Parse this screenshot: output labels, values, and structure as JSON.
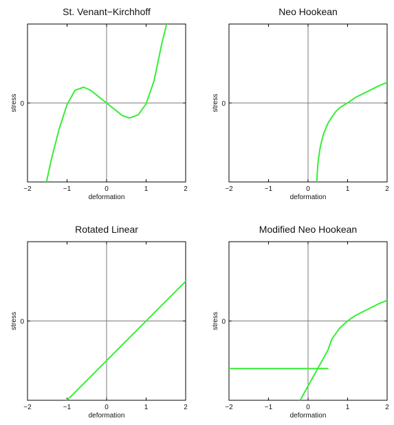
{
  "chart_data": [
    {
      "type": "line",
      "title": "St. Venant−Kirchhoff",
      "xlabel": "deformation",
      "ylabel": "stress",
      "xlim": [
        -2,
        2
      ],
      "ylim": [
        -1,
        1
      ],
      "xticks": [
        -2,
        -1,
        0,
        1,
        2
      ],
      "xtick_labels": [
        "−2",
        "−1",
        "0",
        "1",
        "2"
      ],
      "yticks": [
        0
      ],
      "ytick_labels": [
        "0"
      ],
      "grid": false,
      "zero_lines": true,
      "color": "#33ee33",
      "series": [
        {
          "x": [
            -1.52,
            -1.4,
            -1.2,
            -1.0,
            -0.8,
            -0.58,
            -0.4,
            -0.2,
            0.0,
            0.2,
            0.4,
            0.58,
            0.8,
            1.0,
            1.2,
            1.4,
            1.52
          ],
          "y": [
            -1.0,
            -0.72,
            -0.33,
            -0.02,
            0.16,
            0.2,
            0.16,
            0.08,
            0.0,
            -0.08,
            -0.16,
            -0.19,
            -0.15,
            -0.01,
            0.28,
            0.76,
            1.0
          ]
        }
      ]
    },
    {
      "type": "line",
      "title": "Neo Hookean",
      "xlabel": "deformation",
      "ylabel": "stress",
      "xlim": [
        -2,
        2
      ],
      "ylim": [
        -1,
        1
      ],
      "xticks": [
        -2,
        -1,
        0,
        1,
        2
      ],
      "xtick_labels": [
        "−2",
        "−1",
        "0",
        "1",
        "2"
      ],
      "yticks": [
        0
      ],
      "ytick_labels": [
        "0"
      ],
      "grid": false,
      "zero_lines": true,
      "color": "#33ee33",
      "series": [
        {
          "x": [
            0.22,
            0.25,
            0.3,
            0.35,
            0.4,
            0.5,
            0.6,
            0.7,
            0.8,
            0.9,
            1.0,
            1.2,
            1.4,
            1.6,
            1.8,
            2.0
          ],
          "y": [
            -1.0,
            -0.76,
            -0.58,
            -0.47,
            -0.38,
            -0.26,
            -0.18,
            -0.11,
            -0.06,
            -0.03,
            0.0,
            0.07,
            0.12,
            0.17,
            0.22,
            0.26
          ]
        }
      ]
    },
    {
      "type": "line",
      "title": "Rotated Linear",
      "xlabel": "deformation",
      "ylabel": "stress",
      "xlim": [
        -2,
        2
      ],
      "ylim": [
        -1,
        1
      ],
      "xticks": [
        -2,
        -1,
        0,
        1,
        2
      ],
      "xtick_labels": [
        "−2",
        "−1",
        "0",
        "1",
        "2"
      ],
      "yticks": [
        0
      ],
      "ytick_labels": [
        "0"
      ],
      "grid": false,
      "zero_lines": true,
      "color": "#33ee33",
      "series": [
        {
          "x": [
            -1.0,
            2.0
          ],
          "y": [
            -1.0,
            0.5
          ]
        }
      ]
    },
    {
      "type": "line",
      "title": "Modified Neo Hookean",
      "xlabel": "deformation",
      "ylabel": "stress",
      "xlim": [
        -2,
        2
      ],
      "ylim": [
        -1,
        1
      ],
      "xticks": [
        -2,
        -1,
        0,
        1,
        2
      ],
      "xtick_labels": [
        "−2",
        "−1",
        "0",
        "1",
        "2"
      ],
      "yticks": [
        0
      ],
      "ytick_labels": [
        "0"
      ],
      "grid": false,
      "zero_lines": true,
      "color": "#33ee33",
      "series": [
        {
          "x": [
            -2.0,
            0.5
          ],
          "y": [
            -0.6,
            -0.6
          ]
        },
        {
          "x": [
            -0.2,
            0.5,
            0.6,
            0.8,
            1.0,
            1.2,
            1.4,
            1.6,
            1.8,
            2.0
          ],
          "y": [
            -1.0,
            -0.37,
            -0.23,
            -0.09,
            0.0,
            0.07,
            0.12,
            0.17,
            0.22,
            0.26
          ]
        }
      ]
    }
  ]
}
